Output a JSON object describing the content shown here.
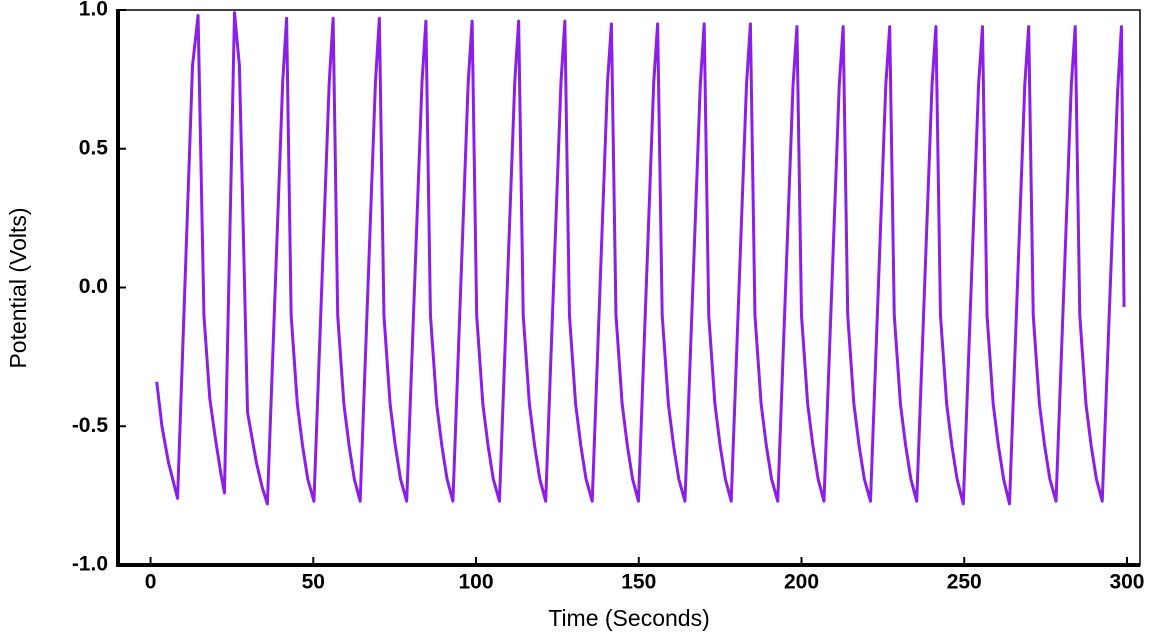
{
  "chart_data": {
    "type": "line",
    "xlabel": "Time (Seconds)",
    "ylabel": "Potential (Volts)",
    "xlim": [
      -10,
      304
    ],
    "ylim": [
      -1.0,
      1.0
    ],
    "xticks": [
      0,
      50,
      100,
      150,
      200,
      250,
      300
    ],
    "yticks": [
      {
        "value": -1.0,
        "label": "-1.0"
      },
      -0.5,
      {
        "value": 0.0,
        "label": "0.0"
      },
      0.5,
      {
        "value": 1.0,
        "label": "1.0"
      }
    ],
    "grid": false,
    "series": [
      {
        "color": "#8b1ee8",
        "x": [
          1.9,
          3.5,
          5.5,
          8.3,
          12.9,
          14.6,
          16.4,
          18.2,
          20.0,
          21.6,
          22.7,
          25.8,
          27.3,
          29.8,
          32.5,
          34.3,
          35.9,
          40.6,
          41.8,
          43.2,
          45.1,
          46.7,
          48.3,
          50.2,
          54.9,
          56.1,
          57.5,
          59.4,
          61.0,
          62.6,
          64.4,
          69.1,
          70.3,
          71.7,
          73.6,
          75.2,
          76.8,
          78.7,
          83.4,
          84.6,
          86.0,
          87.9,
          89.5,
          91.1,
          92.9,
          97.6,
          98.8,
          100.2,
          102.1,
          103.7,
          105.3,
          107.2,
          111.9,
          113.1,
          114.5,
          116.4,
          118.0,
          119.6,
          121.4,
          126.1,
          127.3,
          128.7,
          130.6,
          132.2,
          133.8,
          135.7,
          140.4,
          141.6,
          143.0,
          144.9,
          146.5,
          148.1,
          149.9,
          154.6,
          155.8,
          157.2,
          159.1,
          160.7,
          162.3,
          164.2,
          168.9,
          170.1,
          171.5,
          173.4,
          175.0,
          176.6,
          178.4,
          183.1,
          184.3,
          185.7,
          187.6,
          189.2,
          190.8,
          192.7,
          197.4,
          198.6,
          200.0,
          201.9,
          203.5,
          205.1,
          206.9,
          211.6,
          212.8,
          214.2,
          216.1,
          217.7,
          219.3,
          221.2,
          225.9,
          227.1,
          228.5,
          230.4,
          232.0,
          233.6,
          235.4,
          240.1,
          241.3,
          242.7,
          244.6,
          246.2,
          247.8,
          249.7,
          254.4,
          255.6,
          257.0,
          258.9,
          260.5,
          262.1,
          263.9,
          268.6,
          269.8,
          271.2,
          273.1,
          274.7,
          276.3,
          278.2,
          282.9,
          284.1,
          285.5,
          287.4,
          289.0,
          290.6,
          292.4,
          297.1,
          298.3,
          299.1
        ],
        "values": [
          -0.34,
          -0.5,
          -0.63,
          -0.76,
          0.8,
          0.98,
          -0.1,
          -0.4,
          -0.55,
          -0.67,
          -0.74,
          0.99,
          0.8,
          -0.45,
          -0.63,
          -0.72,
          -0.78,
          0.74,
          0.97,
          -0.1,
          -0.42,
          -0.57,
          -0.69,
          -0.77,
          0.74,
          0.97,
          -0.1,
          -0.42,
          -0.57,
          -0.69,
          -0.77,
          0.74,
          0.97,
          -0.1,
          -0.42,
          -0.57,
          -0.69,
          -0.77,
          0.74,
          0.96,
          -0.1,
          -0.42,
          -0.57,
          -0.69,
          -0.77,
          0.74,
          0.96,
          -0.1,
          -0.42,
          -0.57,
          -0.69,
          -0.77,
          0.74,
          0.96,
          -0.1,
          -0.42,
          -0.57,
          -0.69,
          -0.77,
          0.74,
          0.96,
          -0.1,
          -0.42,
          -0.57,
          -0.69,
          -0.77,
          0.74,
          0.95,
          -0.1,
          -0.42,
          -0.57,
          -0.69,
          -0.77,
          0.74,
          0.95,
          -0.1,
          -0.42,
          -0.57,
          -0.69,
          -0.77,
          0.73,
          0.95,
          -0.1,
          -0.42,
          -0.57,
          -0.69,
          -0.77,
          0.73,
          0.95,
          -0.1,
          -0.42,
          -0.57,
          -0.69,
          -0.77,
          0.73,
          0.94,
          -0.1,
          -0.42,
          -0.57,
          -0.69,
          -0.77,
          0.73,
          0.94,
          -0.1,
          -0.42,
          -0.57,
          -0.69,
          -0.77,
          0.73,
          0.94,
          -0.1,
          -0.42,
          -0.57,
          -0.69,
          -0.77,
          0.73,
          0.94,
          -0.1,
          -0.42,
          -0.57,
          -0.69,
          -0.78,
          0.73,
          0.94,
          -0.1,
          -0.42,
          -0.57,
          -0.69,
          -0.78,
          0.73,
          0.94,
          -0.1,
          -0.42,
          -0.57,
          -0.69,
          -0.77,
          0.73,
          0.94,
          -0.1,
          -0.42,
          -0.57,
          -0.69,
          -0.77,
          0.7,
          0.94,
          -0.07
        ]
      }
    ]
  }
}
